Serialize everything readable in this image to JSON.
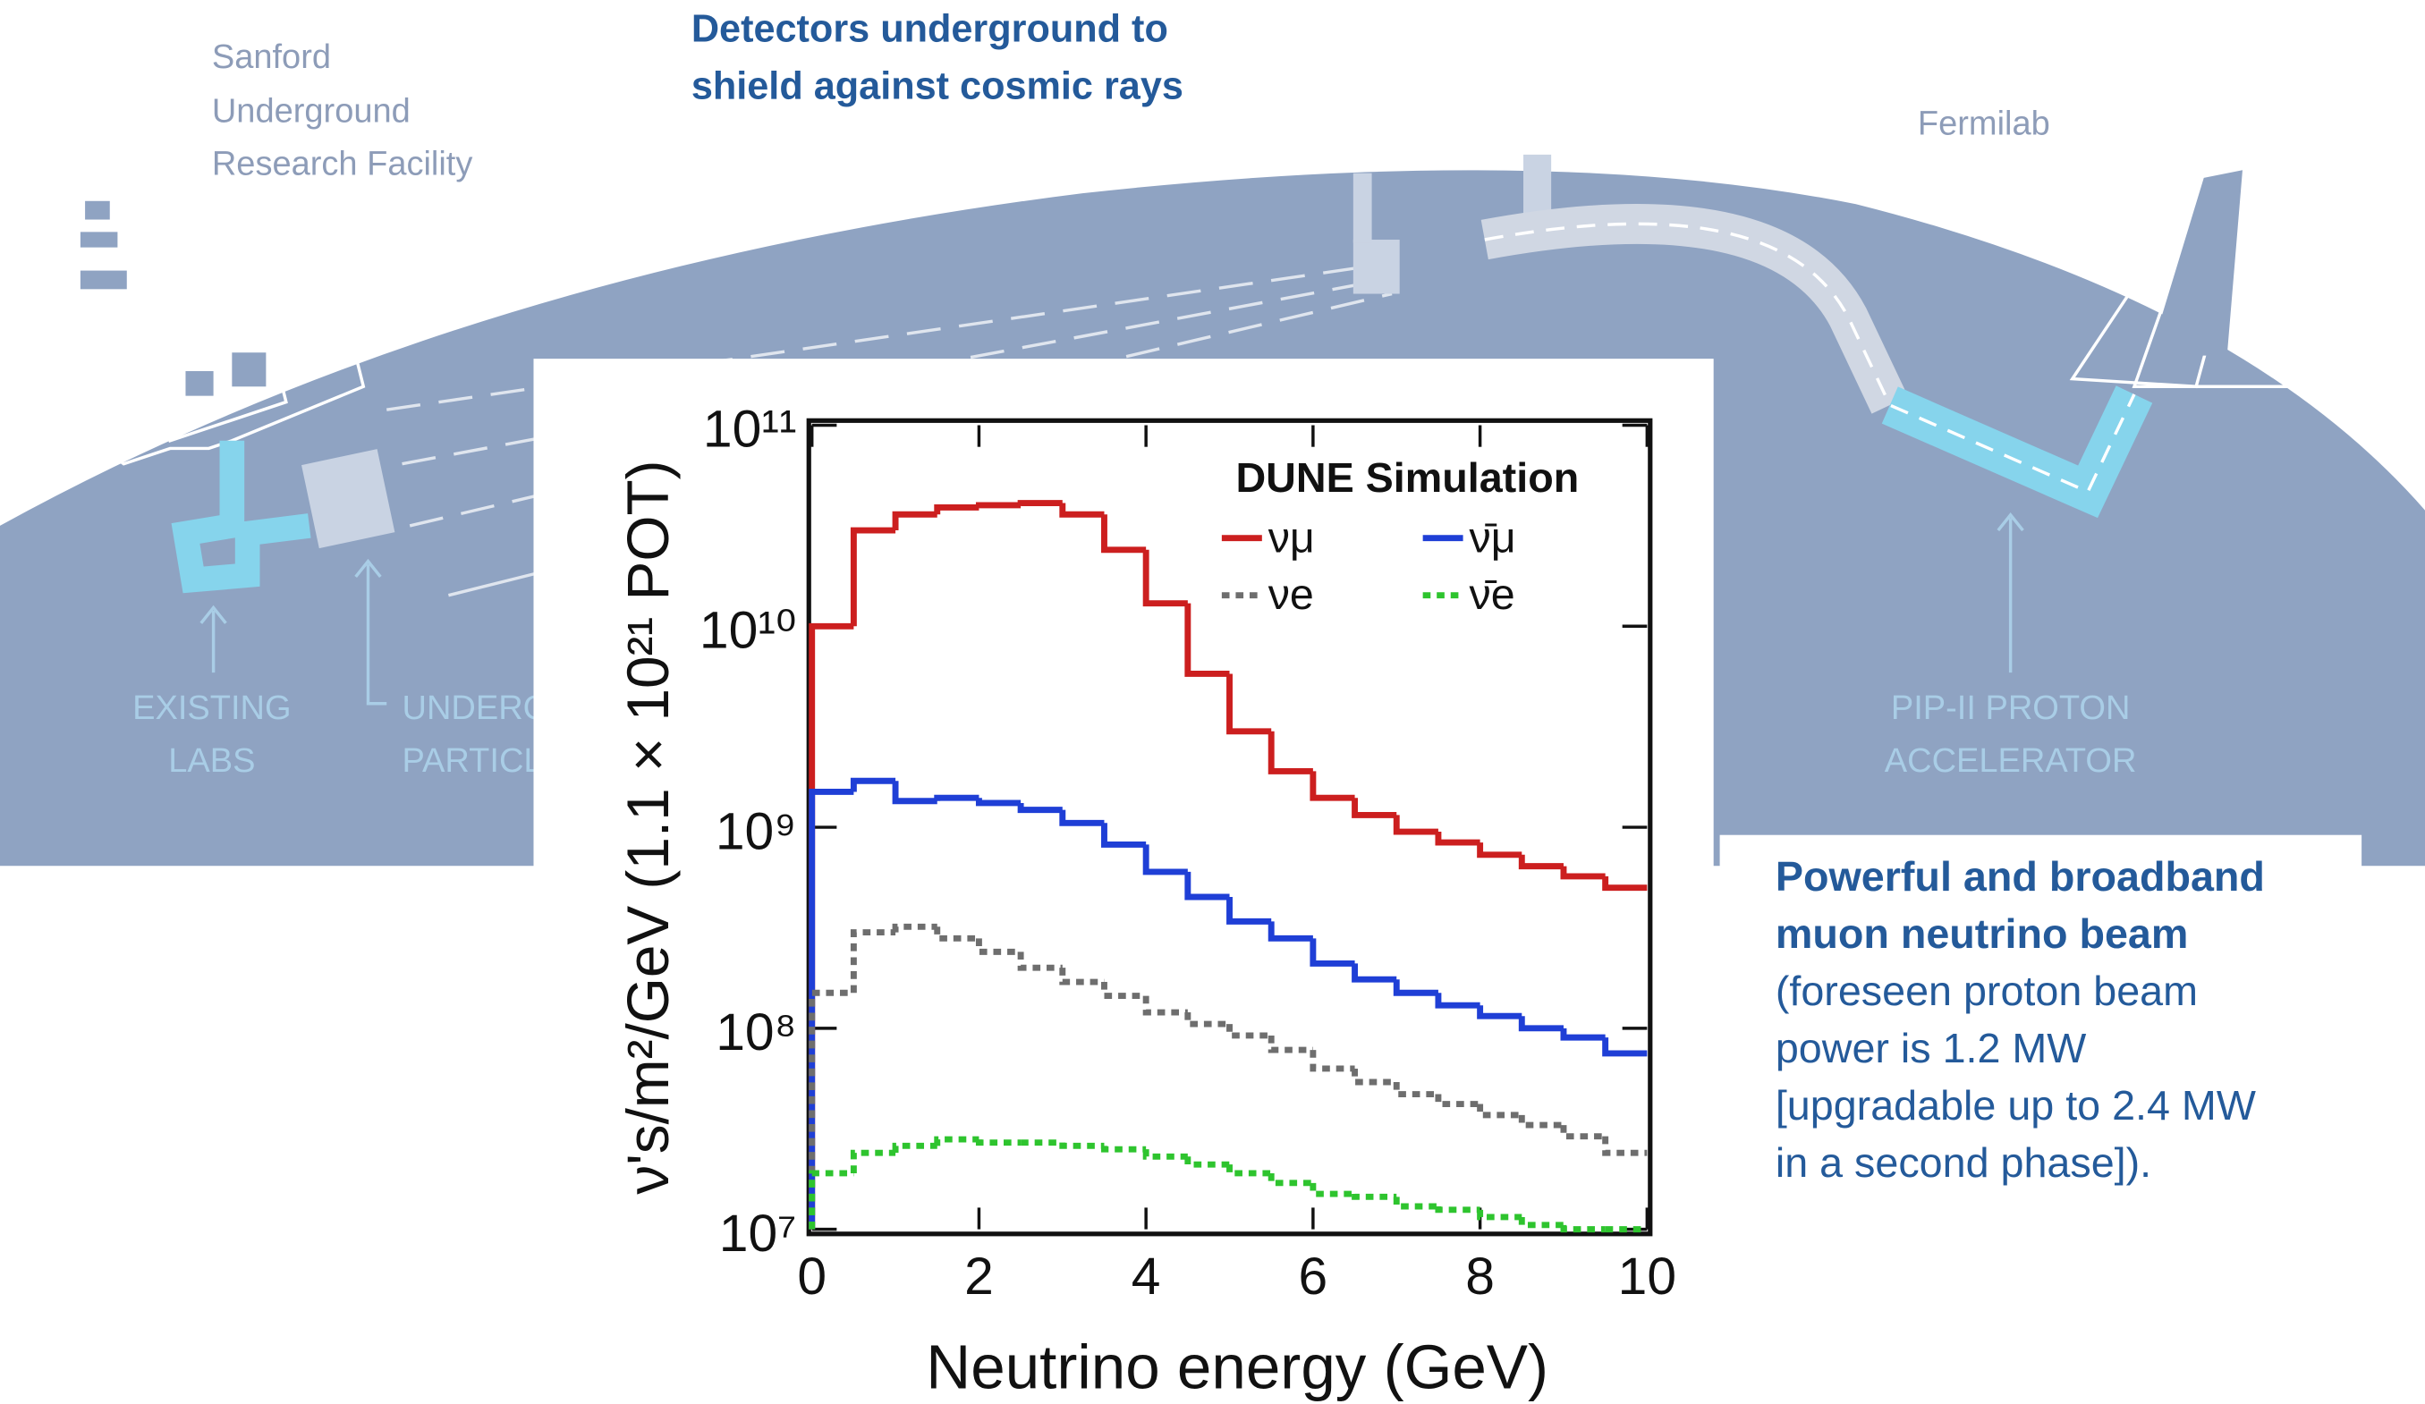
{
  "diagram": {
    "site_left": [
      "Sanford",
      "Underground",
      "Research Facility"
    ],
    "site_right": "Fermilab",
    "labs": [
      "EXISTING",
      "LABS"
    ],
    "detector": [
      "UNDERG",
      "PARTICL"
    ],
    "accelerator": [
      "PIP-II PROTON",
      "ACCELERATOR"
    ]
  },
  "headline": [
    "Detectors underground to",
    "shield against cosmic rays"
  ],
  "note": {
    "bold_lines": [
      "Powerful and broadband",
      "muon neutrino beam"
    ],
    "lines": [
      "(foreseen proton beam",
      "power is 1.2 MW",
      "[upgradable up to 2.4 MW",
      "in a second phase])."
    ]
  },
  "chart_data": {
    "type": "histogram",
    "legend_title": "DUNE Simulation",
    "xlabel": "Neutrino energy (GeV)",
    "ylabel": "ν's/m²/GeV (1.1 × 10²¹ POT)",
    "yscale": "log",
    "xlim": [
      0,
      10
    ],
    "xticks": [
      0,
      2,
      4,
      6,
      8,
      10
    ],
    "ylim": [
      10000000,
      100000000000
    ],
    "yticks": [
      {
        "value": 10000000,
        "label": "10⁷"
      },
      {
        "value": 100000000,
        "label": "10⁸"
      },
      {
        "value": 1000000000,
        "label": "10⁹"
      },
      {
        "value": 10000000000,
        "label": "10¹⁰"
      },
      {
        "value": 100000000000,
        "label": "10¹¹"
      }
    ],
    "bins": [
      0,
      0.5,
      1,
      1.5,
      2,
      2.5,
      3,
      3.5,
      4,
      4.5,
      5,
      5.5,
      6,
      6.5,
      7,
      7.5,
      8,
      8.5,
      9,
      9.5,
      10
    ],
    "series": [
      {
        "name": "νμ",
        "color": "#cc1f1f",
        "linestyle": "solid",
        "values": [
          10000000000,
          30000000000,
          36000000000,
          39000000000,
          40000000000,
          41000000000,
          36000000000,
          24000000000,
          13000000000,
          5800000000,
          3000000000,
          1900000000,
          1400000000,
          1150000000,
          950000000,
          840000000,
          730000000,
          640000000,
          570000000,
          500000000
        ]
      },
      {
        "name": "ν̄μ",
        "color": "#1f3fd6",
        "linestyle": "solid",
        "values": [
          1500000000,
          1700000000,
          1350000000,
          1400000000,
          1320000000,
          1220000000,
          1050000000,
          820000000,
          600000000,
          450000000,
          340000000,
          280000000,
          210000000,
          175000000,
          150000000,
          130000000,
          115000000,
          100000000,
          90000000,
          75000000
        ]
      },
      {
        "name": "νe",
        "color": "#6e6e6e",
        "linestyle": "dotted",
        "values": [
          150000000,
          300000000,
          320000000,
          280000000,
          240000000,
          200000000,
          170000000,
          145000000,
          120000000,
          105000000,
          92000000,
          78000000,
          63000000,
          54000000,
          47000000,
          42000000,
          37000000,
          33000000,
          29000000,
          24000000
        ]
      },
      {
        "name": "ν̄e",
        "color": "#2ec42e",
        "linestyle": "dotted",
        "values": [
          19000000,
          24000000,
          26000000,
          28000000,
          27000000,
          27000000,
          26000000,
          25000000,
          23000000,
          21000000,
          19000000,
          17000000,
          15000000,
          14500000,
          13000000,
          12500000,
          11500000,
          10500000,
          10000000,
          10000000
        ]
      }
    ]
  }
}
